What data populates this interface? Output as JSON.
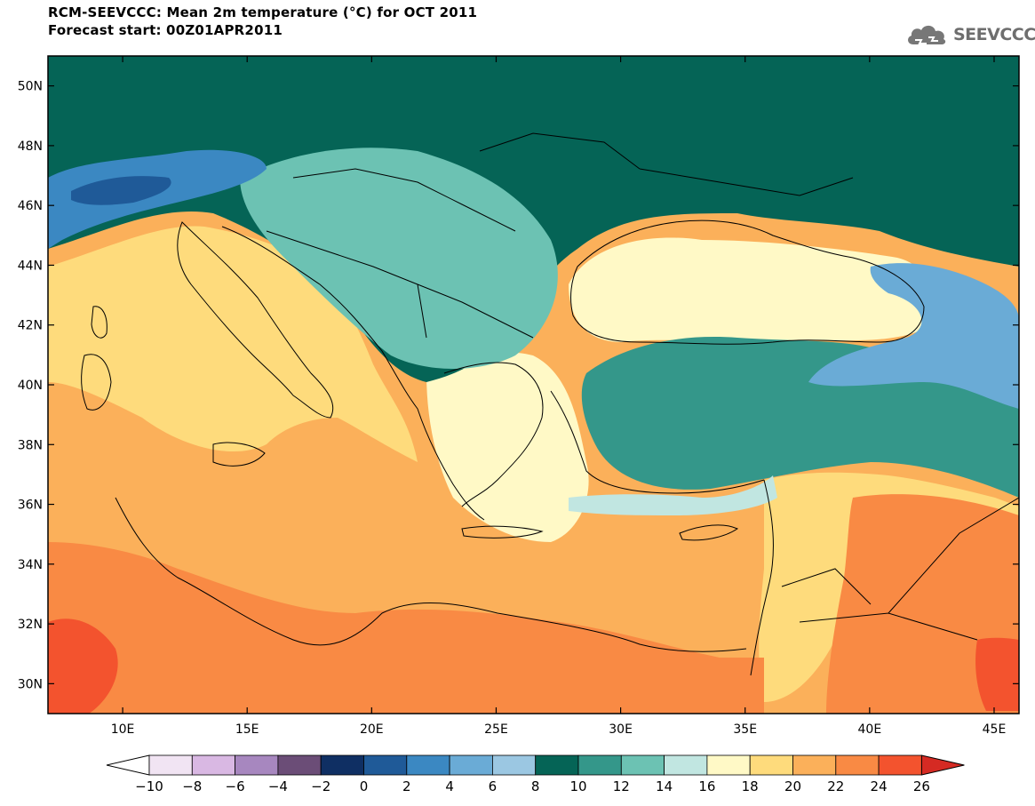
{
  "header": {
    "title_line1": "RCM-SEEVCCC: Mean 2m temperature (°C) for OCT 2011",
    "title_line2": "Forecast start: 00Z01APR2011",
    "logo_text": "SEEVCCC"
  },
  "map": {
    "lon_range": [
      7,
      46
    ],
    "lat_range": [
      29,
      51
    ],
    "lat_labels": [
      "50N",
      "48N",
      "46N",
      "44N",
      "42N",
      "40N",
      "38N",
      "36N",
      "34N",
      "32N",
      "30N"
    ],
    "lon_labels": [
      "10E",
      "15E",
      "20E",
      "25E",
      "30E",
      "35E",
      "40E",
      "45E"
    ],
    "lat_values": [
      50,
      48,
      46,
      44,
      42,
      40,
      38,
      36,
      34,
      32,
      30
    ],
    "lon_values": [
      10,
      15,
      20,
      25,
      30,
      35,
      40,
      45
    ]
  },
  "colorbar": {
    "labels": [
      "−10",
      "−8",
      "−6",
      "−4",
      "−2",
      "0",
      "2",
      "4",
      "6",
      "8",
      "10",
      "12",
      "14",
      "16",
      "18",
      "20",
      "22",
      "24",
      "26"
    ],
    "colors": [
      "#f1e4f3",
      "#d9b8e3",
      "#a787bf",
      "#6b4d77",
      "#0f2f63",
      "#1f5a98",
      "#3b88c2",
      "#6aabd6",
      "#9bc7e2",
      "#056456",
      "#34978a",
      "#6cc2b3",
      "#c1e6e1",
      "#fff9c6",
      "#fedb7c",
      "#fbb05a",
      "#f98a44",
      "#f3532e"
    ],
    "under_color": "#ffffff",
    "over_color": "#d52a23"
  },
  "regions": {
    "background_sea_color": "#fbb05a",
    "far_north_color": "#056456",
    "black_sea_color": "#fff9c6",
    "anatolia_color": "#34978a",
    "levant_color": "#fedb7c",
    "africa_color": "#f98a44",
    "hot_spot_color": "#f3532e"
  }
}
